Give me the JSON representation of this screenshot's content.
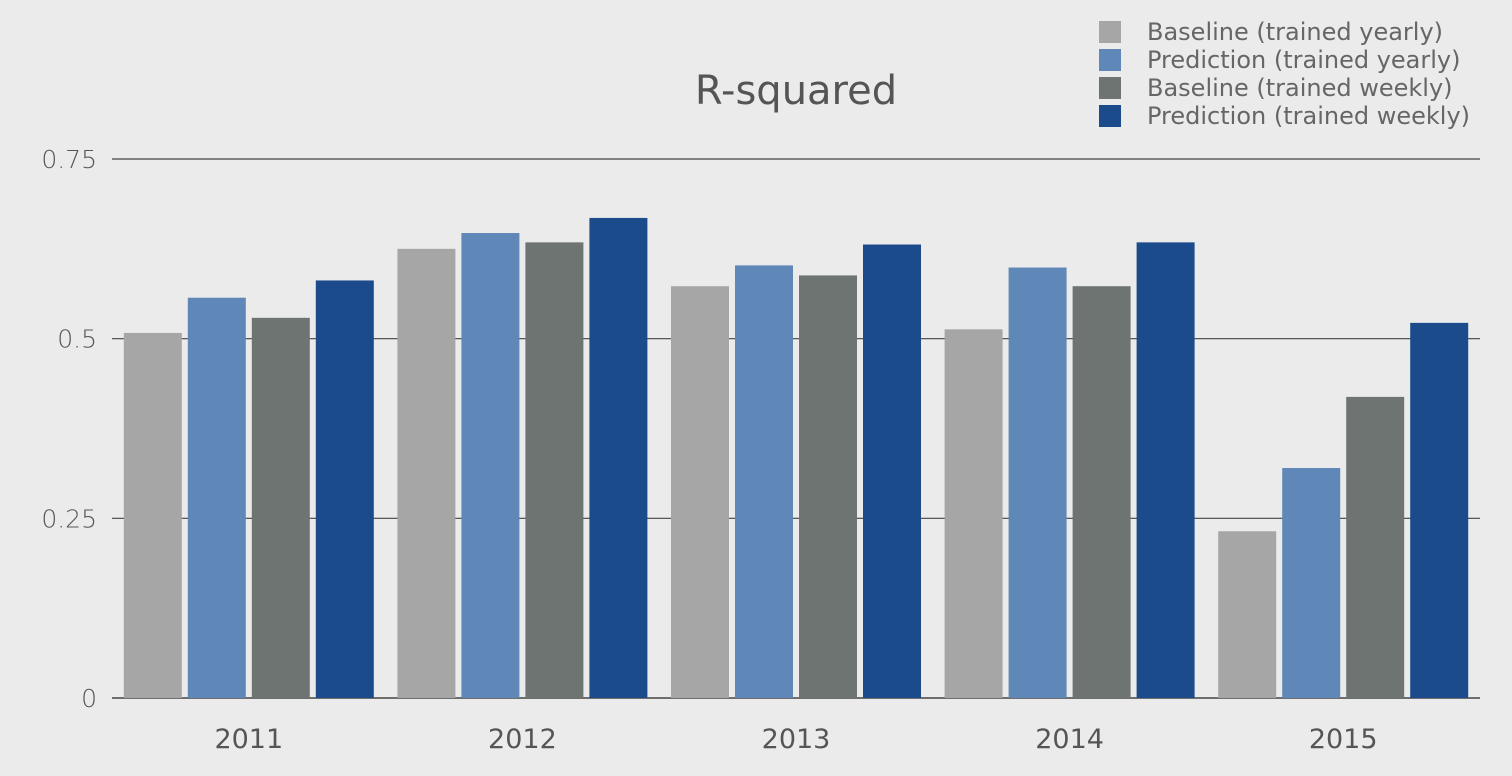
{
  "chart_data": {
    "type": "bar",
    "title": "R-squared",
    "xlabel": "",
    "ylabel": "",
    "categories": [
      "2011",
      "2012",
      "2013",
      "2014",
      "2015"
    ],
    "ylim": [
      0,
      0.75
    ],
    "yticks": [
      0,
      0.25,
      0.5,
      0.75
    ],
    "ytick_labels": [
      "0",
      "0.25",
      "0.5",
      "0.75"
    ],
    "grid": true,
    "legend_position": "top-right",
    "series": [
      {
        "name": "Baseline (trained yearly)",
        "color": "#a6a6a6",
        "values": [
          0.508,
          0.625,
          0.573,
          0.513,
          0.232
        ]
      },
      {
        "name": "Prediction (trained yearly)",
        "color": "#5f88b8",
        "values": [
          0.557,
          0.647,
          0.602,
          0.599,
          0.32
        ]
      },
      {
        "name": "Baseline (trained weekly)",
        "color": "#6d7472",
        "values": [
          0.529,
          0.634,
          0.588,
          0.573,
          0.419
        ]
      },
      {
        "name": "Prediction (trained weekly)",
        "color": "#1c4b8c",
        "values": [
          0.581,
          0.668,
          0.631,
          0.634,
          0.522
        ]
      }
    ]
  }
}
